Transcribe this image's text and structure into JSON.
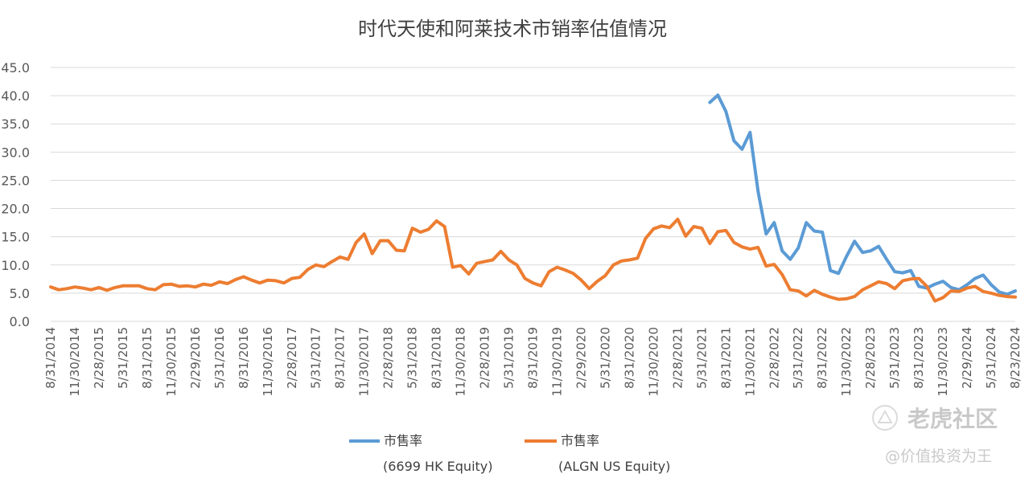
{
  "chart_data": {
    "type": "line",
    "title": "时代天使和阿莱技术市销率估值情况",
    "xlabel": "",
    "ylabel": "",
    "ylim": [
      0,
      45
    ],
    "yticks": [
      "0.0",
      "5.0",
      "10.0",
      "15.0",
      "20.0",
      "25.0",
      "30.0",
      "35.0",
      "40.0",
      "45.0"
    ],
    "grid": true,
    "legend_position": "bottom",
    "x_tick_labels": [
      "8/31/2014",
      "11/30/2014",
      "2/28/2015",
      "5/31/2015",
      "8/31/2015",
      "11/30/2015",
      "2/29/2016",
      "5/31/2016",
      "8/31/2016",
      "11/30/2016",
      "2/28/2017",
      "5/31/2017",
      "8/31/2017",
      "11/30/2017",
      "2/28/2018",
      "5/31/2018",
      "8/31/2018",
      "11/30/2018",
      "2/28/2019",
      "5/31/2019",
      "8/31/2019",
      "11/30/2019",
      "2/29/2020",
      "5/31/2020",
      "8/31/2020",
      "11/30/2020",
      "2/28/2021",
      "5/31/2021",
      "8/31/2021",
      "11/30/2021",
      "2/28/2022",
      "5/31/2022",
      "8/31/2022",
      "11/30/2022",
      "2/28/2023",
      "5/31/2023",
      "8/31/2023",
      "11/30/2023",
      "2/29/2024",
      "5/31/2024",
      "8/23/2024"
    ],
    "series": [
      {
        "name": "市售率",
        "name_note": "(6699 HK Equity)",
        "color": "#5B9BD5",
        "start_month_index": 82,
        "values": [
          38.8,
          40.1,
          37.2,
          32.0,
          30.5,
          33.5,
          23.0,
          15.5,
          17.5,
          12.5,
          11.0,
          13.0,
          17.5,
          16.0,
          15.8,
          9.0,
          8.5,
          11.5,
          14.2,
          12.2,
          12.5,
          13.3,
          11.0,
          8.8,
          8.6,
          9.0,
          6.2,
          5.9,
          6.6,
          7.1,
          6.0,
          5.6,
          6.5,
          7.6,
          8.2,
          6.5,
          5.2,
          4.8,
          5.4
        ]
      },
      {
        "name": "市售率",
        "name_note": "(ALGN US Equity)",
        "color": "#ED7D31",
        "start_month_index": 0,
        "values": [
          6.1,
          5.6,
          5.8,
          6.1,
          5.9,
          5.6,
          6.0,
          5.5,
          6.0,
          6.3,
          6.3,
          6.3,
          5.8,
          5.6,
          6.5,
          6.6,
          6.2,
          6.3,
          6.1,
          6.6,
          6.4,
          7.0,
          6.7,
          7.4,
          7.9,
          7.3,
          6.8,
          7.3,
          7.2,
          6.8,
          7.6,
          7.8,
          9.2,
          10.0,
          9.7,
          10.6,
          11.4,
          11.0,
          14.0,
          15.5,
          12.0,
          14.3,
          14.3,
          12.6,
          12.5,
          16.5,
          15.8,
          16.3,
          17.8,
          16.8,
          9.6,
          9.9,
          8.4,
          10.3,
          10.6,
          10.9,
          12.4,
          10.9,
          10.0,
          7.6,
          6.8,
          6.3,
          8.8,
          9.6,
          9.1,
          8.5,
          7.3,
          5.8,
          7.1,
          8.1,
          10.0,
          10.7,
          10.9,
          11.2,
          14.7,
          16.4,
          16.9,
          16.6,
          18.1,
          15.1,
          16.8,
          16.5,
          13.8,
          15.9,
          16.1,
          14.0,
          13.2,
          12.8,
          13.1,
          9.8,
          10.1,
          8.3,
          5.6,
          5.4,
          4.5,
          5.5,
          4.8,
          4.3,
          3.9,
          4.0,
          4.4,
          5.6,
          6.3,
          7.0,
          6.7,
          5.8,
          7.2,
          7.5,
          7.6,
          6.2,
          3.6,
          4.2,
          5.4,
          5.3,
          5.9,
          6.2,
          5.3,
          5.0,
          4.6,
          4.4,
          4.3
        ]
      }
    ]
  },
  "watermark": {
    "brand": "老虎社区",
    "author": "@价值投资为王",
    "icon": "tiger-logo-icon"
  }
}
